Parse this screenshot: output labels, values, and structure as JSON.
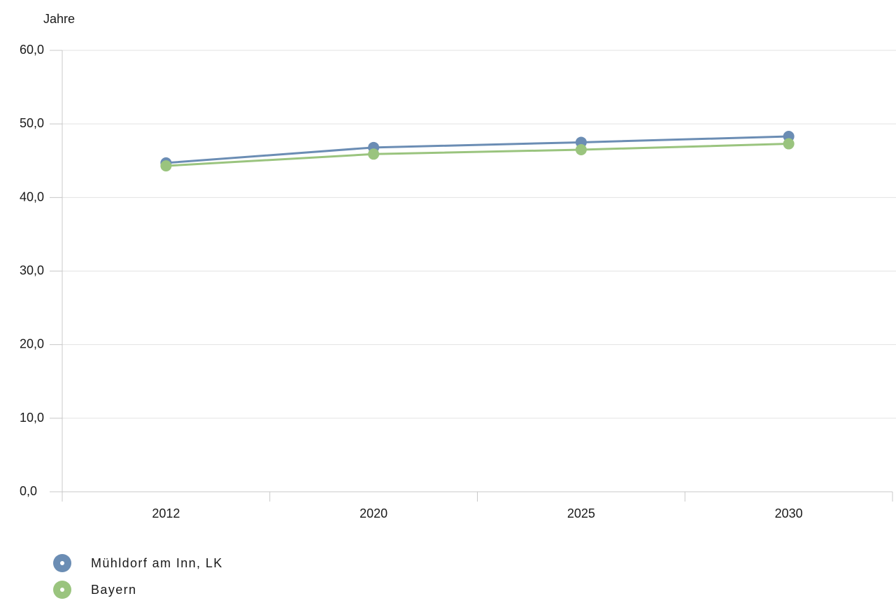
{
  "chart_data": {
    "type": "line",
    "ylabel": "Jahre",
    "xlabel": "",
    "title": "",
    "categories": [
      "2012",
      "2020",
      "2025",
      "2030"
    ],
    "ylim": [
      0,
      60
    ],
    "yticks": [
      "0,0",
      "10,0",
      "20,0",
      "30,0",
      "40,0",
      "50,0",
      "60,0"
    ],
    "grid": true,
    "legend_position": "bottom-left",
    "series": [
      {
        "name": "Mühldorf am Inn, LK",
        "color": "#6b8db4",
        "values": [
          44.7,
          46.8,
          47.5,
          48.3
        ]
      },
      {
        "name": "Bayern",
        "color": "#9ac47e",
        "values": [
          44.3,
          45.9,
          46.5,
          47.3
        ]
      }
    ]
  }
}
